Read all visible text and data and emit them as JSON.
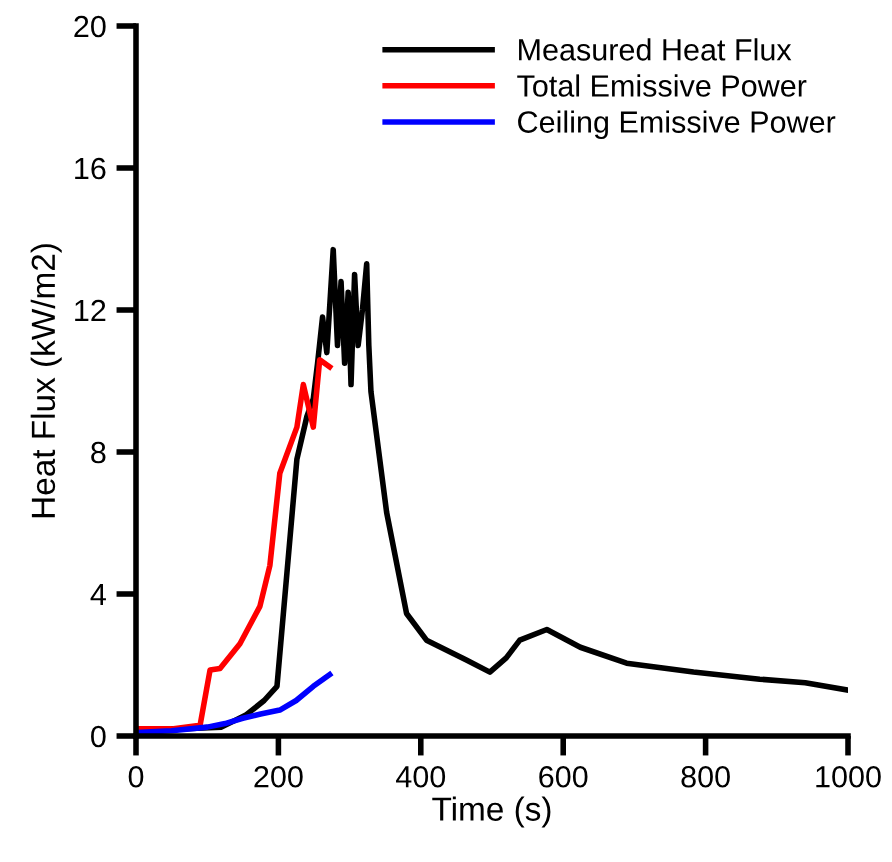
{
  "chart_data": {
    "type": "line",
    "xlabel": "Time (s)",
    "ylabel": "Heat Flux (kW/m2)",
    "xlim": [
      0,
      1000
    ],
    "xticks": [
      0,
      200,
      400,
      600,
      800,
      1000
    ],
    "ylim": [
      0,
      20
    ],
    "yticks": [
      0,
      4,
      8,
      12,
      16,
      20
    ],
    "grid": false,
    "legend": "top right",
    "marker": "none",
    "line_style": "solid",
    "series": [
      {
        "name": "Measured Heat Flux",
        "color": "#000000",
        "x": [
          0,
          60,
          120,
          155,
          180,
          198,
          212,
          226,
          240,
          249,
          255,
          262,
          268,
          277,
          283,
          288,
          293,
          298,
          302,
          307,
          312,
          318,
          324,
          327,
          330,
          352,
          380,
          408,
          464,
          497,
          520,
          539,
          577,
          624,
          689,
          783,
          876,
          940,
          998
        ],
        "values": [
          0.2,
          0.2,
          0.25,
          0.6,
          1.0,
          1.4,
          4.6,
          7.8,
          9.0,
          9.5,
          10.5,
          11.8,
          10.8,
          13.7,
          11.0,
          12.8,
          10.5,
          12.5,
          9.9,
          13.0,
          11.0,
          12.0,
          13.3,
          11.0,
          9.7,
          6.3,
          3.45,
          2.7,
          2.14,
          1.8,
          2.2,
          2.7,
          3.0,
          2.5,
          2.05,
          1.8,
          1.6,
          1.5,
          1.3
        ]
      },
      {
        "name": "Total Emissive Power",
        "color": "#ff0000",
        "x": [
          0,
          50,
          90,
          104,
          118,
          146,
          174,
          188,
          202,
          226,
          235,
          249,
          258,
          272
        ],
        "values": [
          0.2,
          0.2,
          0.3,
          1.86,
          1.9,
          2.6,
          3.65,
          4.8,
          7.4,
          8.7,
          9.9,
          8.7,
          10.6,
          10.4
        ]
      },
      {
        "name": "Ceiling Emissive Power",
        "color": "#0000ff",
        "x": [
          0,
          50,
          100,
          125,
          150,
          175,
          202,
          225,
          249,
          272
        ],
        "values": [
          0.1,
          0.15,
          0.25,
          0.35,
          0.5,
          0.62,
          0.73,
          1.0,
          1.4,
          1.73
        ]
      }
    ]
  }
}
